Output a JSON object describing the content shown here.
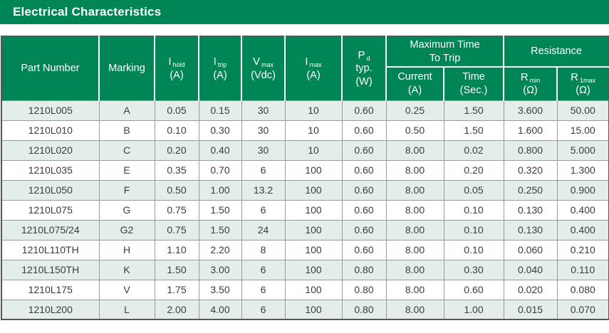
{
  "title": "Electrical Characteristics",
  "colors": {
    "brand_green": "#008556",
    "row_shade": "#E4EEE8",
    "frame_border": "#55565A",
    "grid_line": "#9B9B9B",
    "data_text": "#3C3C3C",
    "header_text": "#FFFFFF"
  },
  "table": {
    "header": {
      "part_number": "Part Number",
      "marking": "Marking",
      "i_hold": {
        "main": "I",
        "sub": "hold",
        "unit": "(A)"
      },
      "i_trip": {
        "main": "I",
        "sub": "trip",
        "unit": "(A)"
      },
      "v_max": {
        "main": "V",
        "sub": "max",
        "unit": "(Vdc)"
      },
      "i_max": {
        "main": "I",
        "sub": "max",
        "unit": "(A)"
      },
      "p_d": {
        "main": "P",
        "sub": "d",
        "line2": "typ.",
        "unit": "(W)"
      },
      "max_time_to_trip": {
        "line1": "Maximum Time",
        "line2": "To Trip",
        "current": {
          "label": "Current",
          "unit": "(A)"
        },
        "time": {
          "label": "Time",
          "unit": "(Sec.)"
        }
      },
      "resistance": {
        "label": "Resistance",
        "r_min": {
          "main": "R",
          "sub": "min",
          "unit": "(Ω)"
        },
        "r_1max": {
          "main": "R",
          "sub": "1max",
          "unit": "(Ω)"
        }
      }
    },
    "rows": [
      [
        "1210L005",
        "A",
        "0.05",
        "0.15",
        "30",
        "10",
        "0.60",
        "0.25",
        "1.50",
        "3.600",
        "50.00"
      ],
      [
        "1210L010",
        "B",
        "0.10",
        "0.30",
        "30",
        "10",
        "0.60",
        "0.50",
        "1.50",
        "1.600",
        "15.00"
      ],
      [
        "1210L020",
        "C",
        "0.20",
        "0.40",
        "30",
        "10",
        "0.60",
        "8.00",
        "0.02",
        "0.800",
        "5.000"
      ],
      [
        "1210L035",
        "E",
        "0.35",
        "0.70",
        "6",
        "100",
        "0.60",
        "8.00",
        "0.20",
        "0.320",
        "1.300"
      ],
      [
        "1210L050",
        "F",
        "0.50",
        "1.00",
        "13.2",
        "100",
        "0.60",
        "8.00",
        "0.05",
        "0.250",
        "0.900"
      ],
      [
        "1210L075",
        "G",
        "0.75",
        "1.50",
        "6",
        "100",
        "0.60",
        "8.00",
        "0.10",
        "0.130",
        "0.400"
      ],
      [
        "1210L075/24",
        "G2",
        "0.75",
        "1.50",
        "24",
        "100",
        "0.60",
        "8.00",
        "0.10",
        "0.130",
        "0.400"
      ],
      [
        "1210L110TH",
        "H",
        "1.10",
        "2.20",
        "8",
        "100",
        "0.60",
        "8.00",
        "0.10",
        "0.060",
        "0.210"
      ],
      [
        "1210L150TH",
        "K",
        "1.50",
        "3.00",
        "6",
        "100",
        "0.80",
        "8.00",
        "0.30",
        "0.040",
        "0.110"
      ],
      [
        "1210L175",
        "V",
        "1.75",
        "3.50",
        "6",
        "100",
        "0.80",
        "8.00",
        "0.60",
        "0.020",
        "0.080"
      ],
      [
        "1210L200",
        "L",
        "2.00",
        "4.00",
        "6",
        "100",
        "0.80",
        "8.00",
        "1.00",
        "0.015",
        "0.070"
      ]
    ]
  }
}
